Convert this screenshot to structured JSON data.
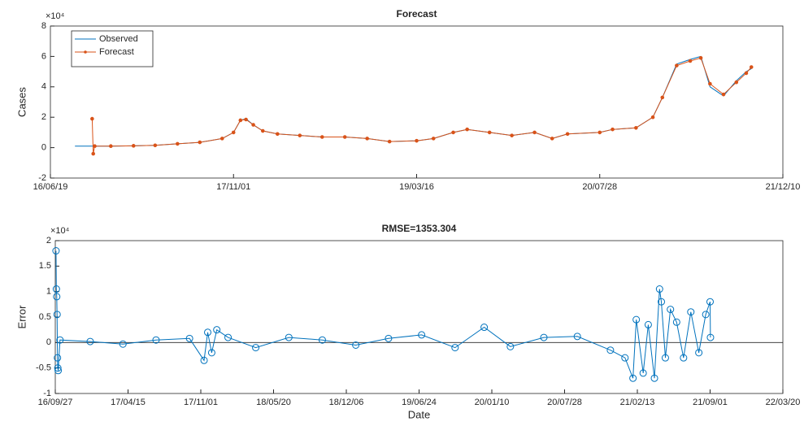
{
  "chart_data": [
    {
      "type": "line",
      "title": "Forecast",
      "ylabel": "Cases",
      "y_multiplier": "×10⁴",
      "xlim": [
        "16/06/19",
        "21/12/10"
      ],
      "xticks": [
        "16/06/19",
        "17/11/01",
        "19/03/16",
        "20/07/28",
        "21/12/10"
      ],
      "ylim": [
        -2,
        8
      ],
      "yticks": [
        -2,
        0,
        2,
        4,
        6,
        8
      ],
      "legend": "northwest",
      "x": [
        "16/08/25",
        "16/10/08",
        "16/10/11",
        "16/10/14",
        "16/10/18",
        "16/12/01",
        "17/02/01",
        "17/04/01",
        "17/06/01",
        "17/08/01",
        "17/10/01",
        "17/11/01",
        "17/11/20",
        "17/12/05",
        "17/12/25",
        "18/01/20",
        "18/03/01",
        "18/05/01",
        "18/07/01",
        "18/09/01",
        "18/11/01",
        "19/01/01",
        "19/03/16",
        "19/05/01",
        "19/06/24",
        "19/08/01",
        "19/10/01",
        "19/12/01",
        "20/02/01",
        "20/03/20",
        "20/05/01",
        "20/07/28",
        "20/09/01",
        "20/11/04",
        "20/12/20",
        "21/01/15",
        "21/02/23",
        "21/04/01",
        "21/04/30",
        "21/05/25",
        "21/07/01",
        "21/08/05",
        "21/09/01",
        "21/09/15"
      ],
      "series": [
        {
          "name": "Observed",
          "color": "#0072bd",
          "marker": "none",
          "values": [
            0.1,
            0.1,
            0.1,
            0.1,
            0.1,
            0.1,
            0.12,
            0.15,
            0.25,
            0.35,
            0.6,
            1.0,
            1.8,
            1.9,
            1.5,
            1.1,
            0.9,
            0.8,
            0.7,
            0.7,
            0.6,
            0.4,
            0.45,
            0.6,
            1.0,
            1.2,
            1.0,
            0.8,
            1.0,
            0.6,
            0.9,
            1.0,
            1.2,
            1.3,
            2.0,
            3.3,
            5.5,
            5.8,
            6.0,
            4.0,
            3.4,
            4.4,
            5.0,
            5.2
          ]
        },
        {
          "name": "Forecast",
          "color": "#d95319",
          "marker": "dot",
          "values": [
            null,
            null,
            1.9,
            -0.4,
            0.1,
            0.1,
            0.12,
            0.15,
            0.25,
            0.35,
            0.6,
            1.0,
            1.8,
            1.85,
            1.5,
            1.1,
            0.9,
            0.8,
            0.7,
            0.7,
            0.6,
            0.4,
            0.45,
            0.6,
            1.0,
            1.2,
            1.0,
            0.8,
            1.0,
            0.6,
            0.9,
            1.0,
            1.2,
            1.3,
            2.0,
            3.3,
            5.4,
            5.7,
            5.9,
            4.2,
            3.5,
            4.3,
            4.9,
            5.3
          ]
        }
      ]
    },
    {
      "type": "line",
      "title": "RMSE=1353.304",
      "ylabel": "Error",
      "xlabel": "Date",
      "y_multiplier": "×10⁴",
      "xlim": [
        "16/09/27",
        "22/03/20"
      ],
      "xticks": [
        "16/09/27",
        "17/04/15",
        "17/11/01",
        "18/05/20",
        "18/12/06",
        "19/06/24",
        "20/01/10",
        "20/07/28",
        "21/02/13",
        "21/09/01",
        "22/03/20"
      ],
      "ylim": [
        -1,
        2
      ],
      "yticks": [
        -1,
        -0.5,
        0,
        0.5,
        1,
        1.5,
        2
      ],
      "x": [
        "16/09/29",
        "16/09/30",
        "16/10/01",
        "16/10/02",
        "16/10/03",
        "16/10/04",
        "16/10/05",
        "16/10/10",
        "17/01/01",
        "17/04/01",
        "17/07/01",
        "17/10/01",
        "17/11/10",
        "17/11/20",
        "17/12/01",
        "17/12/15",
        "18/01/15",
        "18/04/01",
        "18/07/01",
        "18/10/01",
        "19/01/01",
        "19/04/01",
        "19/07/01",
        "19/10/01",
        "19/12/20",
        "20/03/01",
        "20/06/01",
        "20/09/01",
        "20/12/01",
        "21/01/10",
        "21/02/01",
        "21/02/10",
        "21/03/01",
        "21/03/15",
        "21/04/01",
        "21/04/15",
        "21/04/20",
        "21/05/01",
        "21/05/15",
        "21/06/01",
        "21/06/20",
        "21/07/10",
        "21/08/01",
        "21/08/20",
        "21/09/01",
        "21/09/02"
      ],
      "series": [
        {
          "name": "Error",
          "color": "#0072bd",
          "marker": "circle",
          "values": [
            1.8,
            1.05,
            0.9,
            0.55,
            -0.3,
            -0.5,
            -0.55,
            0.05,
            0.02,
            -0.03,
            0.05,
            0.08,
            -0.35,
            0.2,
            -0.2,
            0.25,
            0.1,
            -0.1,
            0.1,
            0.05,
            -0.05,
            0.08,
            0.15,
            -0.1,
            0.3,
            -0.08,
            0.1,
            0.12,
            -0.15,
            -0.3,
            -0.7,
            0.45,
            -0.6,
            0.35,
            -0.7,
            1.05,
            0.8,
            -0.3,
            0.65,
            0.4,
            -0.3,
            0.6,
            -0.2,
            0.55,
            0.8,
            0.1
          ]
        }
      ]
    }
  ]
}
